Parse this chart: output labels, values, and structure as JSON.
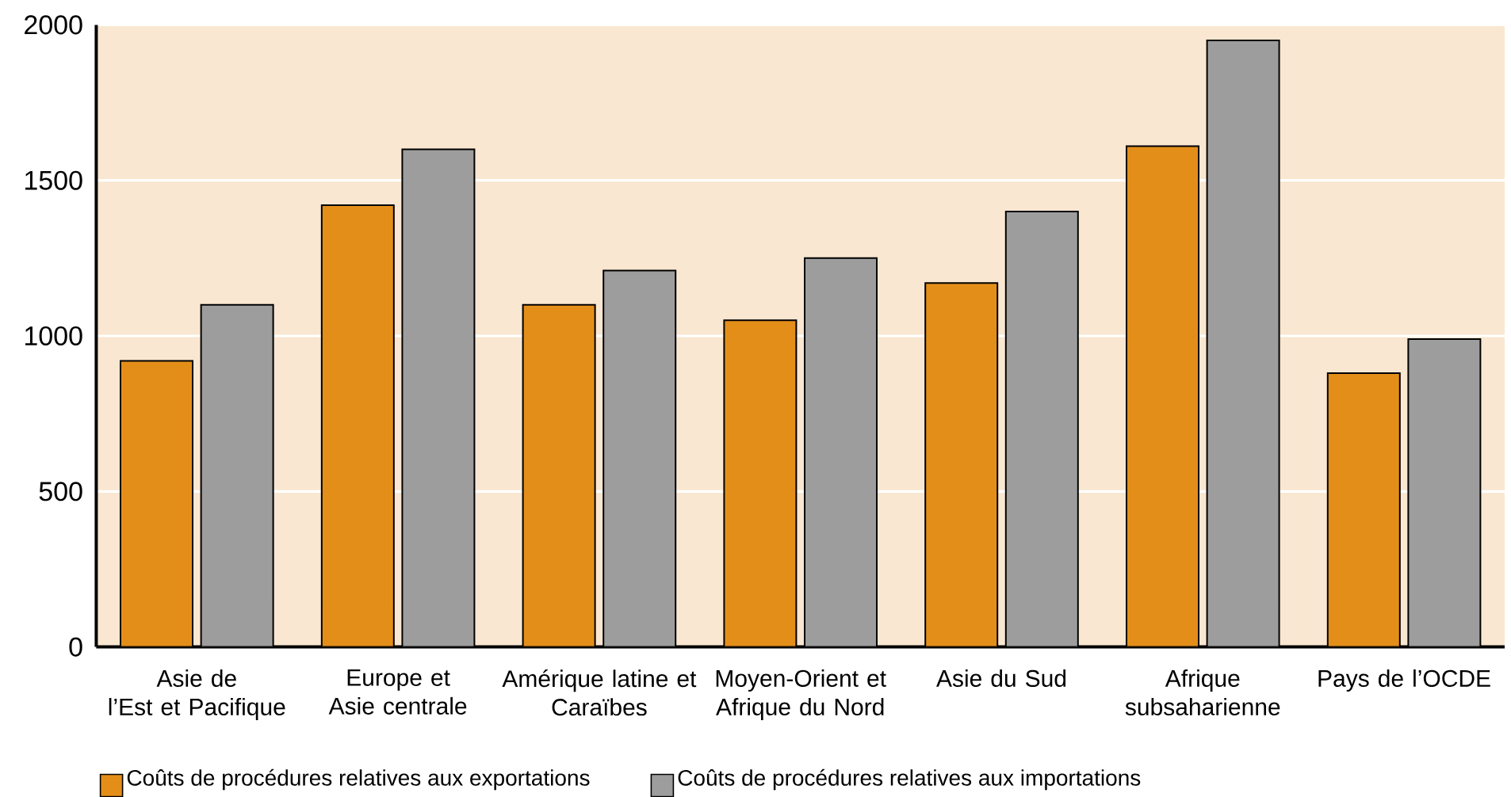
{
  "chart_data": {
    "type": "bar",
    "categories": [
      "Asie de\nl’Est et Pacifique",
      "Europe et\nAsie centrale",
      "Amérique latine et\nCaraïbes",
      "Moyen-Orient et\nAfrique du Nord",
      "Asie du Sud",
      "Afrique\nsubsaharienne",
      "Pays de l’OCDE"
    ],
    "series": [
      {
        "name": "Coûts de procédures relatives aux exportations",
        "color": "#e48e1a",
        "values": [
          920,
          1420,
          1100,
          1050,
          1170,
          1610,
          880
        ]
      },
      {
        "name": "Coûts de procédures relatives aux importations",
        "color": "#9d9d9d",
        "values": [
          1100,
          1600,
          1210,
          1250,
          1400,
          1950,
          990
        ]
      }
    ],
    "ylim": [
      0,
      2000
    ],
    "yticks": [
      0,
      500,
      1000,
      1500,
      2000
    ],
    "grid": "y",
    "legend": "bottom"
  }
}
